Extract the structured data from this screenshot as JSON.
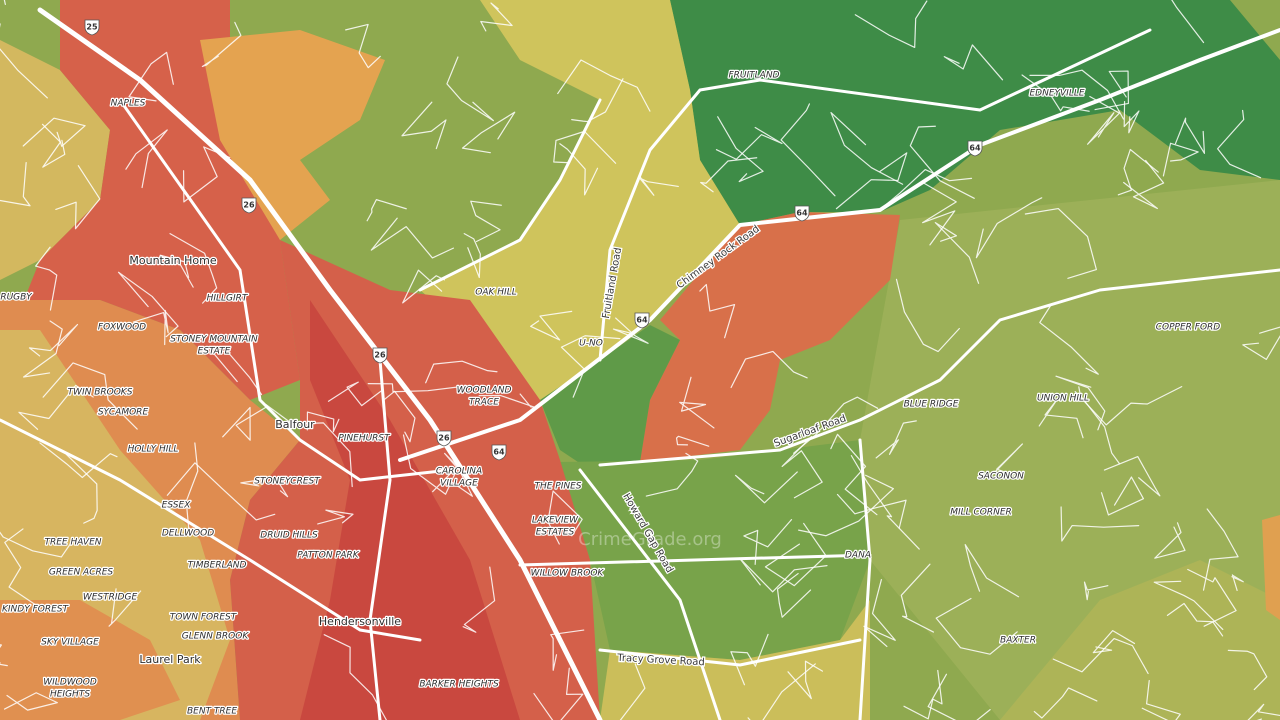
{
  "places": [
    [
      "NAPLES"
    ],
    [
      "FRUITLAND"
    ],
    [
      "EDNEYVILLE"
    ],
    [
      "Mountain Home"
    ],
    [
      "HILLGIRT"
    ],
    [
      "RUGBY"
    ],
    [
      "FOXWOOD"
    ],
    [
      "STONEY MOUNTAIN",
      "ESTATE"
    ],
    [
      "OAK HILL"
    ],
    [
      "U-NO"
    ],
    [
      "TWIN BROOKS"
    ],
    [
      "SYCAMORE"
    ],
    [
      "WOODLAND",
      "TRACE"
    ],
    [
      "Balfour"
    ],
    [
      "PINEHURST"
    ],
    [
      "HOLLY HILL"
    ],
    [
      "CAROLINA",
      "VILLAGE"
    ],
    [
      "STONEYCREST"
    ],
    [
      "THE PINES"
    ],
    [
      "ESSEX"
    ],
    [
      "DELLWOOD"
    ],
    [
      "LAKEVIEW",
      "ESTATES"
    ],
    [
      "DRUID HILLS"
    ],
    [
      "TREE HAVEN"
    ],
    [
      "PATTON PARK"
    ],
    [
      "TIMBERLAND"
    ],
    [
      "WILLOW BROOK"
    ],
    [
      "DANA"
    ],
    [
      "GREEN ACRES"
    ],
    [
      "WESTRIDGE"
    ],
    [
      "KINDY FOREST"
    ],
    [
      "TOWN FOREST"
    ],
    [
      "Hendersonville"
    ],
    [
      "GLENN BROOK"
    ],
    [
      "SKY VILLAGE"
    ],
    [
      "Laurel Park"
    ],
    [
      "WILDWOOD",
      "HEIGHTS"
    ],
    [
      "BARKER HEIGHTS"
    ],
    [
      "BENT TREE"
    ],
    [
      "BLUE RIDGE"
    ],
    [
      "UNION HILL"
    ],
    [
      "COPPER FORD"
    ],
    [
      "SACONON"
    ],
    [
      "MILL CORNER"
    ],
    [
      "BAXTER"
    ]
  ],
  "roads": [
    "Chimney Rock Road",
    "Fruitland Road",
    "Sugarloaf Road",
    "Howard Gap Road",
    "Tracy Grove Road"
  ],
  "shields": [
    "25",
    "26",
    "26",
    "26",
    "64",
    "64",
    "64",
    "64"
  ],
  "watermark": "CrimeGrade.org"
}
